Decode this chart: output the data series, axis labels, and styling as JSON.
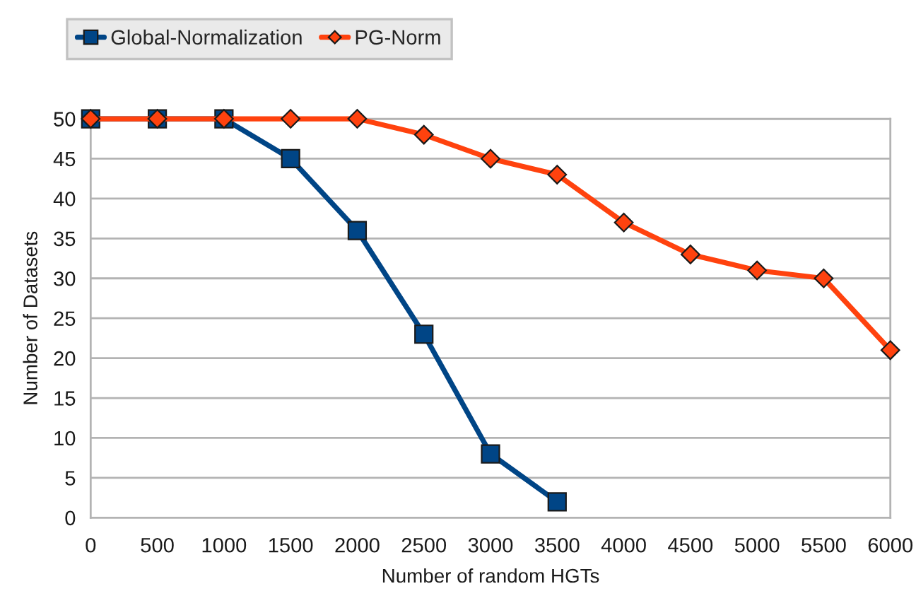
{
  "chart_data": {
    "type": "line",
    "xlabel": "Number of random HGTs",
    "ylabel": "Number of Datasets",
    "series": [
      {
        "name": "Global-Normalization",
        "color": "#004586",
        "marker": "square",
        "x": [
          0,
          500,
          1000,
          1500,
          2000,
          2500,
          3000,
          3500
        ],
        "values": [
          50,
          50,
          50,
          45,
          36,
          23,
          8,
          2
        ]
      },
      {
        "name": "PG-Norm",
        "color": "#ff420e",
        "marker": "diamond",
        "x": [
          0,
          500,
          1000,
          1500,
          2000,
          2500,
          3000,
          3500,
          4000,
          4500,
          5000,
          5500,
          6000
        ],
        "values": [
          50,
          50,
          50,
          50,
          50,
          48,
          45,
          43,
          37,
          33,
          31,
          30,
          21
        ]
      }
    ],
    "xlim": [
      0,
      6000
    ],
    "xticks": [
      0,
      500,
      1000,
      1500,
      2000,
      2500,
      3000,
      3500,
      4000,
      4500,
      5000,
      5500,
      6000
    ],
    "ylim": [
      0,
      50
    ],
    "yticks": [
      0,
      5,
      10,
      15,
      20,
      25,
      30,
      35,
      40,
      45,
      50
    ],
    "grid": "y",
    "legend": "top left",
    "line_style": "solid"
  }
}
